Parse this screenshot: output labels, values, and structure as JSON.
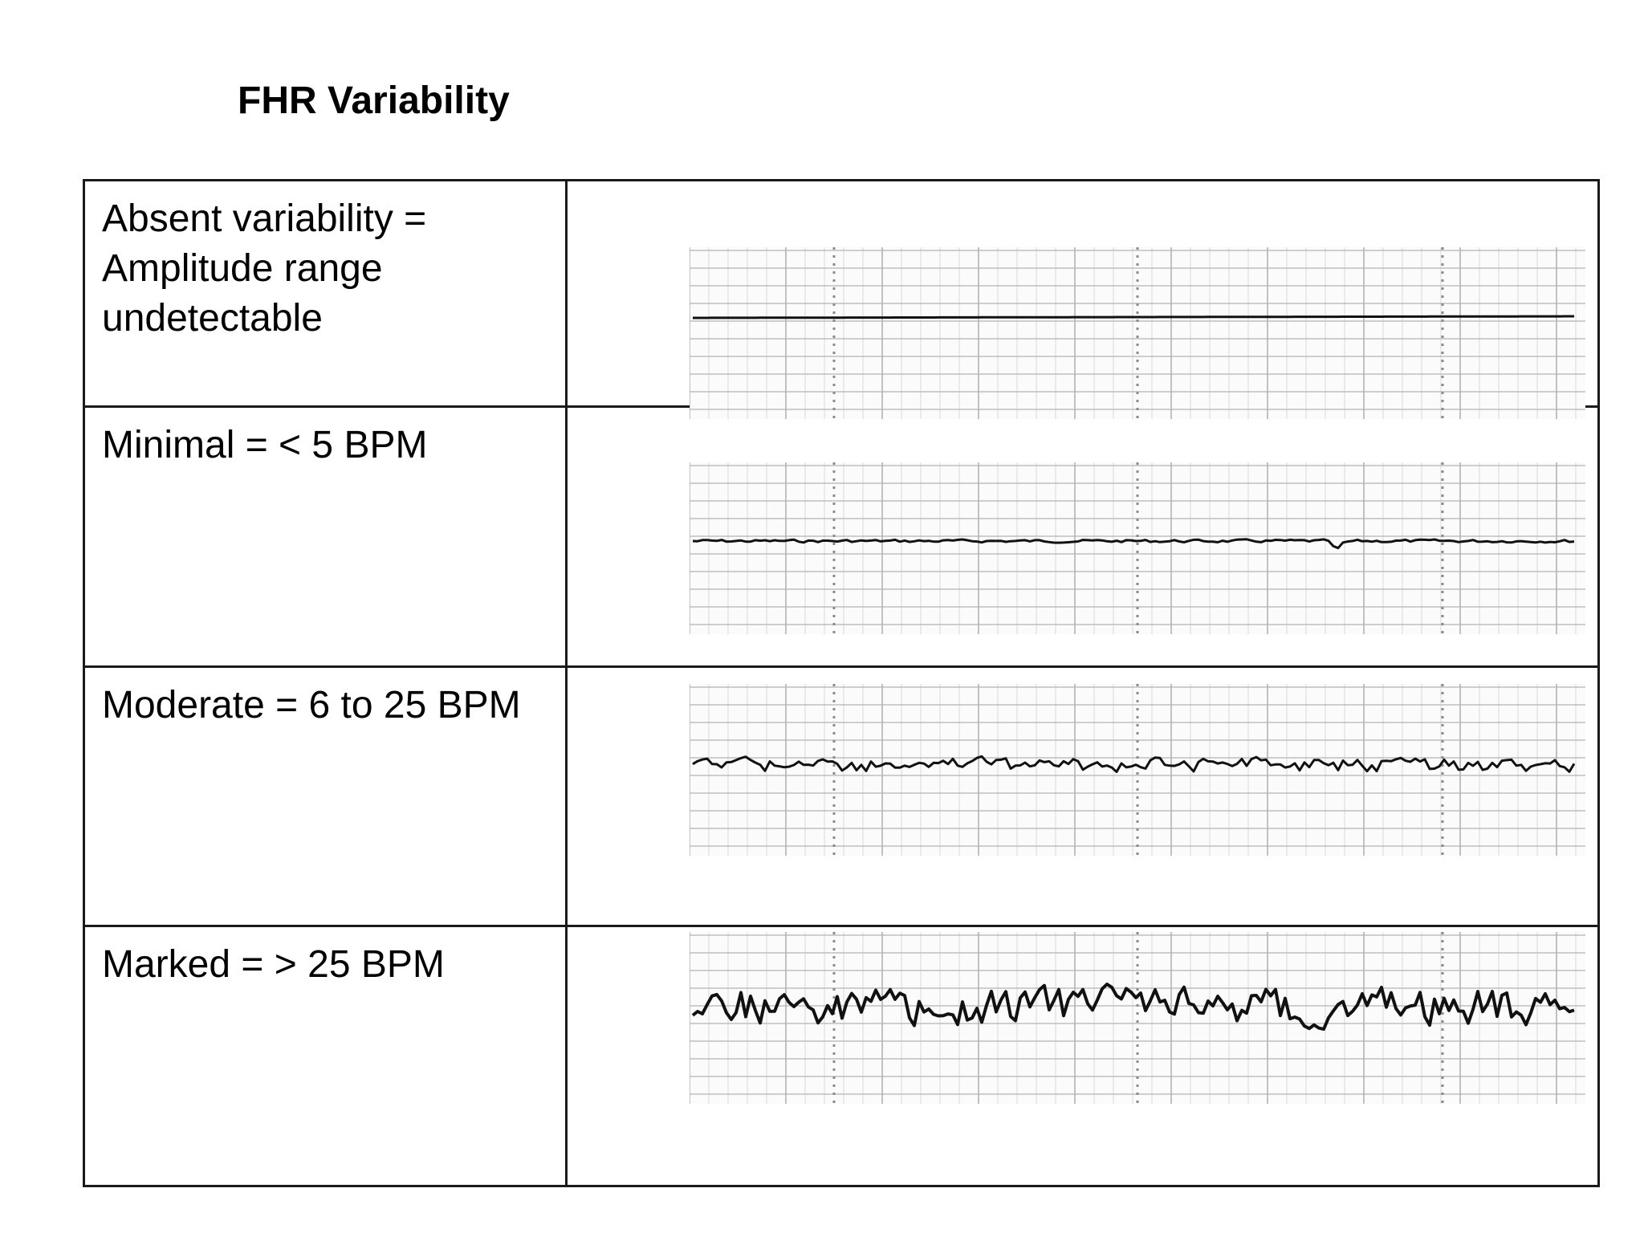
{
  "title": "FHR Variability",
  "colors": {
    "text": "#000000",
    "grid_minor": "#d9d9d9",
    "grid_major": "#b3b3b3",
    "trace": "#111111"
  },
  "rows": [
    {
      "label": "Absent variability =\nAmplitude range\nundetectable",
      "trace": "absent"
    },
    {
      "label": "Minimal = < 5 BPM",
      "trace": "minimal"
    },
    {
      "label": "Moderate = 6 to 25 BPM",
      "trace": "moderate"
    },
    {
      "label": "Marked = > 25 BPM",
      "trace": "marked"
    }
  ]
}
